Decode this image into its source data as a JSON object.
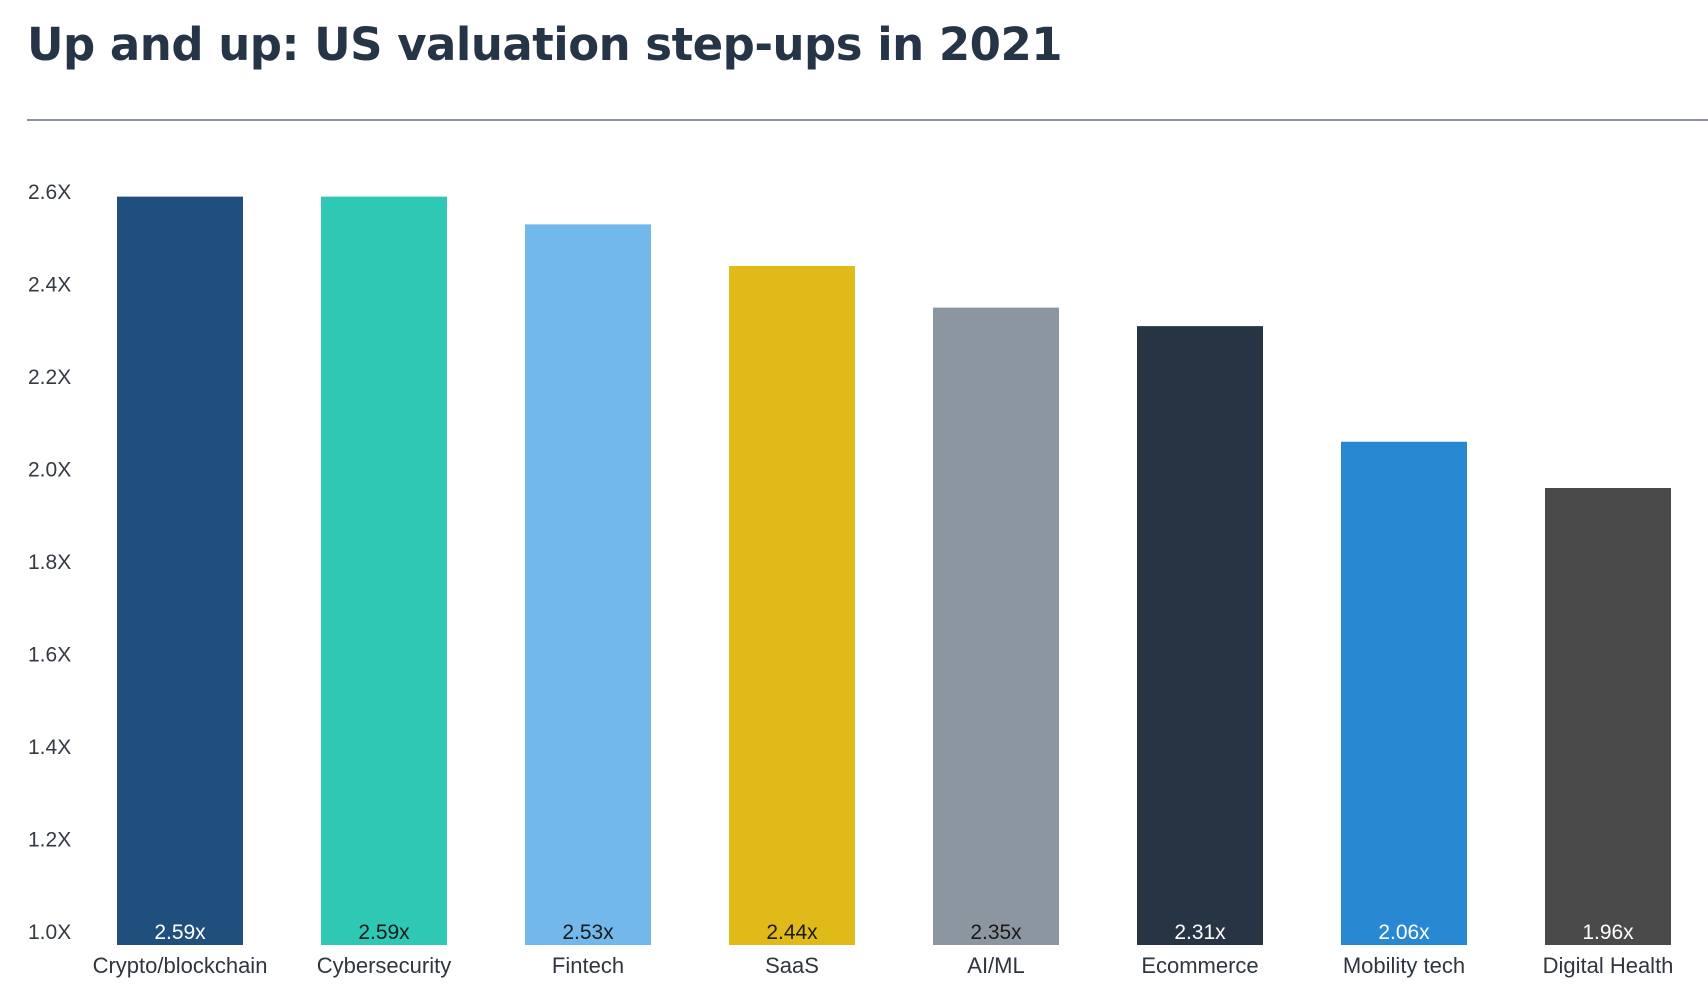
{
  "chart_data": {
    "type": "bar",
    "title": "Up and up: US valuation step-ups in 2021",
    "xlabel": "",
    "ylabel": "",
    "ylim": [
      1.0,
      2.6
    ],
    "ytick_values": [
      1.0,
      1.2,
      1.4,
      1.6,
      1.8,
      2.0,
      2.2,
      2.4,
      2.6
    ],
    "ytick_labels": [
      "1.0X",
      "1.2X",
      "1.4X",
      "1.6X",
      "1.8X",
      "2.0X",
      "2.2X",
      "2.4X",
      "2.6X"
    ],
    "categories": [
      "Crypto/blockchain",
      "Cybersecurity",
      "Fintech",
      "SaaS",
      "AI/ML",
      "Ecommerce",
      "Mobility tech",
      "Digital Health"
    ],
    "values": [
      2.59,
      2.59,
      2.53,
      2.44,
      2.35,
      2.31,
      2.06,
      1.96
    ],
    "data_labels": [
      "2.59x",
      "2.59x",
      "2.53x",
      "2.44x",
      "2.35x",
      "2.31x",
      "2.06x",
      "1.96x"
    ],
    "colors": [
      "#1e4f7d",
      "#2ec8b5",
      "#72b8ea",
      "#e0ba18",
      "#8c96a1",
      "#273443",
      "#2888d2",
      "#4a4a4a"
    ],
    "label_colors": [
      "#ffffff",
      "#1a1a1a",
      "#1a1a1a",
      "#1a1a1a",
      "#1a1a1a",
      "#ffffff",
      "#ffffff",
      "#ffffff"
    ],
    "grid": false,
    "legend": "none"
  }
}
